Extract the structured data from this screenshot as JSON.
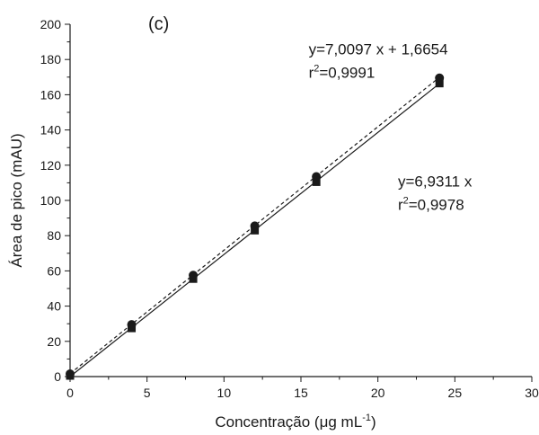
{
  "chart_data": {
    "type": "scatter",
    "panel_label": "(c)",
    "title": "",
    "xlabel": "Concentração (μg mL",
    "xlabel_sup": "-1",
    "xlabel_tail": ")",
    "ylabel": "Área de pico (mAU)",
    "xlim": [
      0,
      30
    ],
    "ylim": [
      0,
      200
    ],
    "x_ticks": [
      "0",
      "5",
      "10",
      "15",
      "20",
      "25",
      "30"
    ],
    "y_ticks": [
      "0",
      "20",
      "40",
      "60",
      "80",
      "100",
      "120",
      "140",
      "160",
      "180",
      "200"
    ],
    "grid": false,
    "series": [
      {
        "marker": "circle",
        "line_style": "dashed",
        "color": "#1a1a1a",
        "x": [
          0,
          4,
          8,
          12,
          16,
          24
        ],
        "y": [
          1.5,
          29.5,
          57.5,
          85.5,
          113.5,
          169.5
        ],
        "fit": {
          "slope": 7.0097,
          "intercept": 1.6654
        }
      },
      {
        "marker": "square",
        "line_style": "solid",
        "color": "#1a1a1a",
        "x": [
          0,
          4,
          8,
          12,
          16,
          24
        ],
        "y": [
          0.5,
          27.5,
          55.5,
          83,
          110.5,
          166.5
        ],
        "fit": {
          "slope": 6.9311,
          "intercept": 0
        }
      }
    ],
    "annotations": [
      {
        "eq": "y=7,0097 x + 1,6654",
        "r2_prefix": "r",
        "r2_sup": "2",
        "r2_value": "=0,9991",
        "anchor_x": 15.5,
        "anchor_y": 183
      },
      {
        "eq": "y=6,9311 x",
        "r2_prefix": "r",
        "r2_sup": "2",
        "r2_value": "=0,9978",
        "anchor_x": 21.3,
        "anchor_y": 108
      }
    ]
  }
}
